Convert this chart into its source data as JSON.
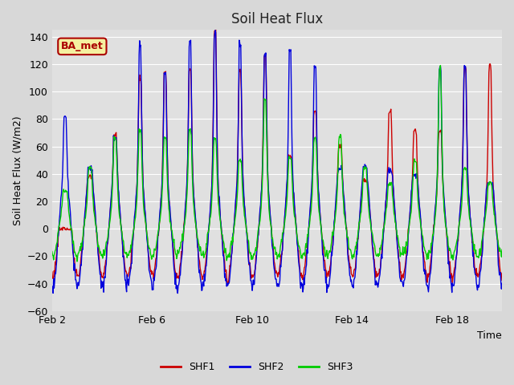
{
  "title": "Soil Heat Flux",
  "xlabel": "Time",
  "ylabel": "Soil Heat Flux (W/m2)",
  "ylim": [
    -60,
    145
  ],
  "yticks": [
    -60,
    -40,
    -20,
    0,
    20,
    40,
    60,
    80,
    100,
    120,
    140
  ],
  "xtick_labels": [
    "Feb 2",
    "Feb 6",
    "Feb 10",
    "Feb 14",
    "Feb 18"
  ],
  "xtick_positions": [
    2,
    6,
    10,
    14,
    18
  ],
  "series_colors": [
    "#cc0000",
    "#0000dd",
    "#00cc00"
  ],
  "series_names": [
    "SHF1",
    "SHF2",
    "SHF3"
  ],
  "bg_color": "#d8d8d8",
  "plot_bg_color": "#e0e0e0",
  "annotation_text": "BA_met",
  "annotation_bg": "#f5f0a0",
  "annotation_border": "#aa0000",
  "grid_color": "#ffffff",
  "line_width": 1.0,
  "peaks_shf1": [
    0,
    35,
    62,
    100,
    103,
    105,
    130,
    105,
    115,
    48,
    78,
    55,
    32,
    78,
    65,
    65,
    107,
    108
  ],
  "peaks_shf2": [
    75,
    40,
    60,
    120,
    103,
    125,
    131,
    122,
    115,
    119,
    108,
    40,
    42,
    38,
    35,
    107,
    107,
    30
  ],
  "peaks_shf3": [
    25,
    40,
    60,
    65,
    60,
    65,
    60,
    45,
    86,
    47,
    60,
    62,
    40,
    30,
    45,
    107,
    40,
    30
  ],
  "night_shf1": -35,
  "night_shf2": -42,
  "night_shf3": -20,
  "n_days": 18,
  "n_per_day": 48
}
